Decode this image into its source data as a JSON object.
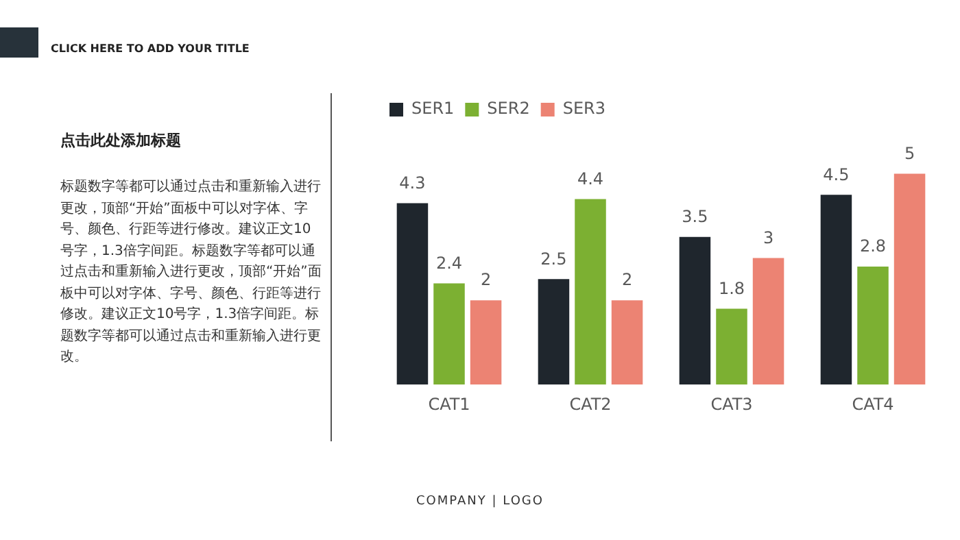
{
  "chart_data": {
    "type": "bar",
    "title": "CLICK HERE TO ADD YOUR TITLE",
    "subtitle": "点击此处添加标题",
    "annotations": [
      "标题数字等都可以通过点击和重新输入进行更改，顶部“开始”面板中可以对字体、字号、颜色、行距等进行修改。建议正文10号字，1.3倍字间距。标题数字等都可以通过点击和重新输入进行更改，顶部“开始”面板中可以对字体、字号、颜色、行距等进行修改。建议正文10号字，1.3倍字间距。标题数字等都可以通过点击和重新输入进行更改。",
      "COMPANY | LOGO"
    ],
    "categories": [
      "CAT1",
      "CAT2",
      "CAT3",
      "CAT4"
    ],
    "series": [
      {
        "name": "SER1",
        "color": "#1f262d",
        "values": [
          4.3,
          2.5,
          3.5,
          4.5
        ]
      },
      {
        "name": "SER2",
        "color": "#7cb032",
        "values": [
          2.4,
          4.4,
          1.8,
          2.8
        ]
      },
      {
        "name": "SER3",
        "color": "#ec8373",
        "values": [
          2,
          2,
          3,
          5
        ]
      }
    ],
    "data_labels": true,
    "legend": "top left",
    "grid": false,
    "tick_labels": "x"
  }
}
